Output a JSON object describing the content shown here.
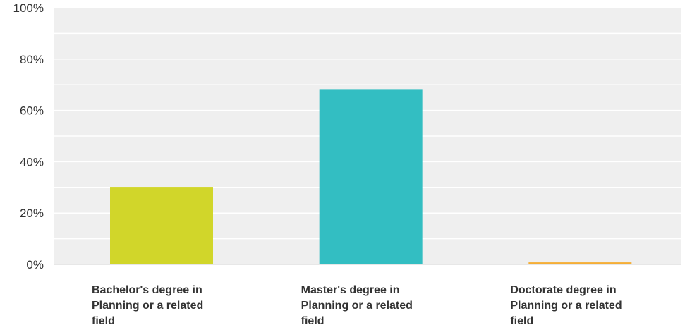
{
  "chart_data": {
    "type": "bar",
    "categories": [
      [
        "Bachelor's degree in",
        "Planning or a related",
        "field"
      ],
      [
        "Master's degree in",
        "Planning or a related",
        "field"
      ],
      [
        "Doctorate degree in",
        "Planning or a related",
        "field"
      ]
    ],
    "values": [
      30.2,
      68.3,
      0.8
    ],
    "colors": [
      "#d1d62a",
      "#33bec2",
      "#f5ae36"
    ],
    "y_ticks": [
      "0%",
      "20%",
      "40%",
      "60%",
      "80%",
      "100%"
    ],
    "ylim": [
      0,
      100
    ],
    "grid": true,
    "plot_background": "#efefef",
    "grid_color": "#ffffff",
    "title": "",
    "xlabel": "",
    "ylabel": ""
  }
}
